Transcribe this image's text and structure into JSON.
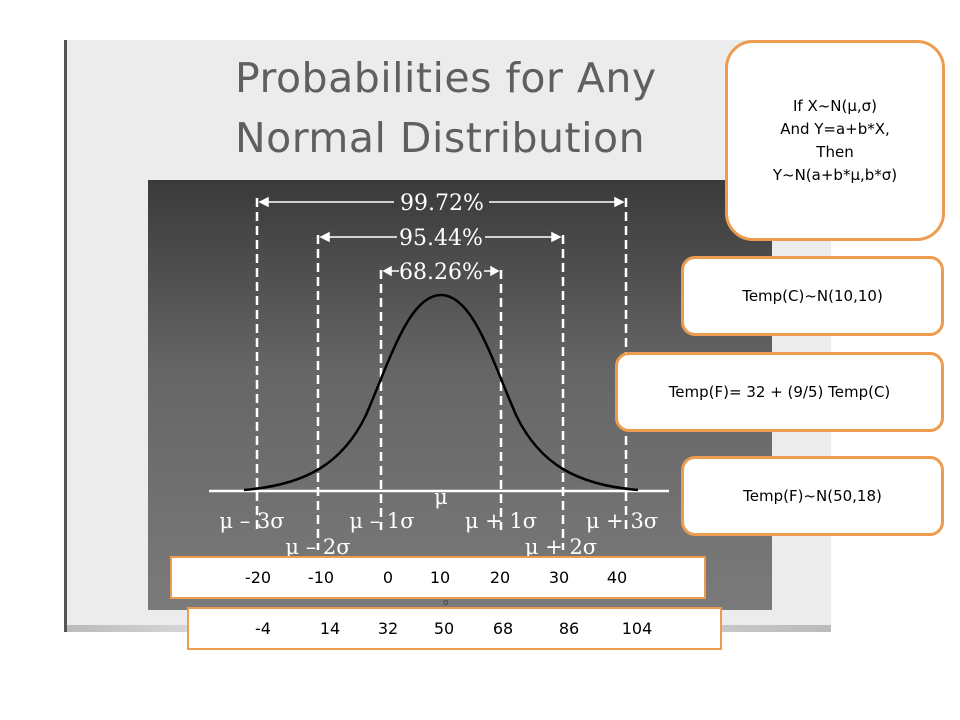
{
  "slide": {
    "title_line1": "Probabilities for Any",
    "title_line2": "Normal Distribution"
  },
  "diagram": {
    "band_outer": "99.72%",
    "band_middle": "95.44%",
    "band_inner": "68.26%",
    "axis_labels": {
      "mu": "μ",
      "m3": "μ – 3σ",
      "m2": "μ – 2σ",
      "m1": "μ – 1σ",
      "p1": "μ + 1σ",
      "p2": "μ + 2σ",
      "p3": "μ + 3σ"
    }
  },
  "callouts": {
    "rule_lines": [
      "If X~N(μ,σ)",
      "And Y=a+b*X,",
      "Then",
      "Y~N(a+b*μ,b*σ)"
    ],
    "celsius": "Temp(C)~N(10,10)",
    "conversion": "Temp(F)= 32 + (9/5) Temp(C)",
    "fahrenheit": "Temp(F)~N(50,18)"
  },
  "scales": {
    "celsius": [
      "-20",
      "-10",
      "0",
      "10",
      "20",
      "30",
      "40"
    ],
    "fahrenheit": [
      "-4",
      "14",
      "32",
      "50",
      "68",
      "86",
      "104"
    ],
    "degree_mark": "o"
  },
  "colors": {
    "callout_border": "#ed9b4f",
    "panel": "#555555"
  }
}
